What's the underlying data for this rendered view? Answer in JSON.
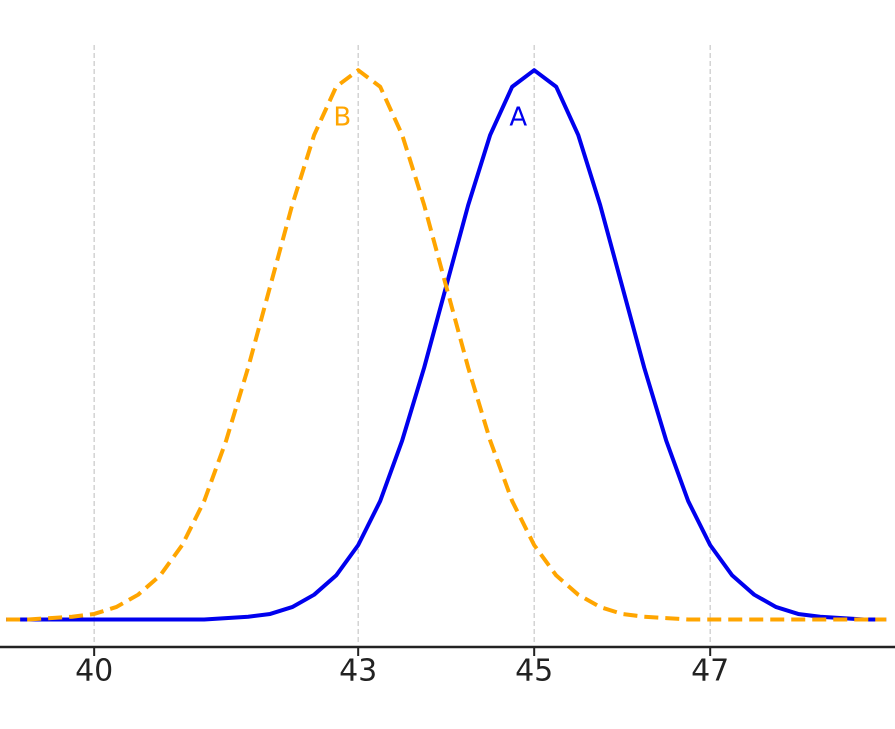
{
  "chart_data": {
    "type": "line",
    "x": [
      39,
      39.25,
      39.5,
      39.75,
      40,
      40.25,
      40.5,
      40.75,
      41,
      41.25,
      41.5,
      41.75,
      42,
      42.25,
      42.5,
      42.75,
      43,
      43.25,
      43.5,
      43.75,
      44,
      44.25,
      44.5,
      44.75,
      45,
      45.25,
      45.5,
      45.75,
      46,
      46.25,
      46.5,
      46.75,
      47,
      47.25,
      47.5,
      47.75,
      48,
      48.25,
      48.5,
      48.75,
      49
    ],
    "series": [
      {
        "name": "A",
        "color": "#0000ee",
        "linestyle": "solid",
        "values": [
          0,
          0,
          0,
          0,
          0,
          0,
          0,
          0,
          0,
          0,
          0.001,
          0.002,
          0.004,
          0.009,
          0.018,
          0.032,
          0.054,
          0.086,
          0.13,
          0.183,
          0.242,
          0.301,
          0.352,
          0.387,
          0.399,
          0.387,
          0.352,
          0.301,
          0.242,
          0.183,
          0.13,
          0.086,
          0.054,
          0.032,
          0.018,
          0.009,
          0.004,
          0.002,
          0.001,
          0,
          0
        ]
      },
      {
        "name": "B",
        "color": "#ffa500",
        "linestyle": "dashed",
        "values": [
          0,
          0,
          0.001,
          0.002,
          0.004,
          0.009,
          0.018,
          0.032,
          0.054,
          0.086,
          0.13,
          0.183,
          0.242,
          0.301,
          0.352,
          0.387,
          0.399,
          0.387,
          0.352,
          0.301,
          0.242,
          0.183,
          0.13,
          0.086,
          0.054,
          0.032,
          0.018,
          0.009,
          0.004,
          0.002,
          0.001,
          0,
          0,
          0,
          0,
          0,
          0,
          0,
          0,
          0,
          0
        ]
      }
    ],
    "xlim": [
      38.93,
      49.1
    ],
    "xticks": [
      40,
      43,
      45,
      47
    ],
    "ylim": [
      -0.02,
      0.45
    ],
    "grid": true
  }
}
